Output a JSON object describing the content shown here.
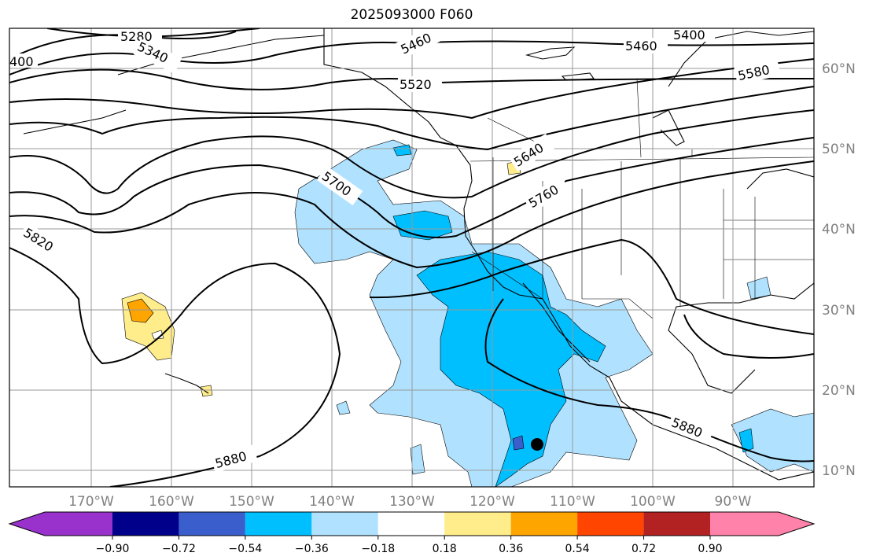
{
  "title": "2025093000 F060",
  "map": {
    "lon_ticks": [
      "170°W",
      "160°W",
      "150°W",
      "140°W",
      "130°W",
      "120°W",
      "110°W",
      "100°W",
      "90°W"
    ],
    "lat_ticks": [
      "60°N",
      "50°N",
      "40°N",
      "30°N",
      "20°N",
      "10°N"
    ],
    "contour_labels": [
      "5280",
      "5340",
      "400",
      "5400",
      "5460",
      "5460",
      "5520",
      "5580",
      "5640",
      "5700",
      "5760",
      "5820",
      "5880",
      "5880"
    ]
  },
  "colorbar": {
    "colors": [
      "#9932cc",
      "#00008b",
      "#3a5fcd",
      "#00bfff",
      "#b0e2ff",
      "#ffffff",
      "#ffec8b",
      "#ffa500",
      "#ff4500",
      "#b22222",
      "#ff82ab"
    ],
    "ticks": [
      "−0.90",
      "−0.72",
      "−0.54",
      "−0.36",
      "−0.18",
      "0.18",
      "0.36",
      "0.54",
      "0.72",
      "0.90"
    ]
  }
}
